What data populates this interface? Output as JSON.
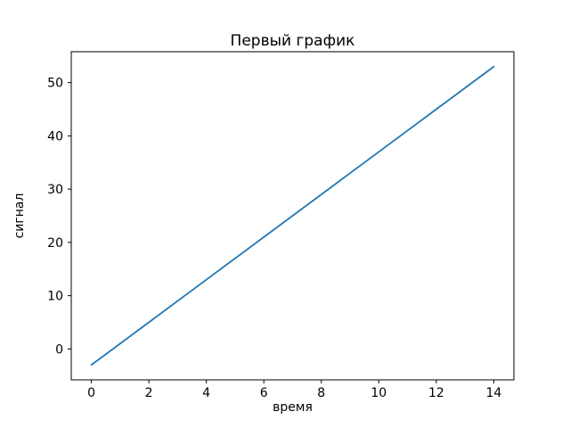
{
  "chart_data": {
    "type": "line",
    "title": "Первый график",
    "xlabel": "время",
    "ylabel": "сигнал",
    "x": [
      0,
      1,
      2,
      3,
      4,
      5,
      6,
      7,
      8,
      9,
      10,
      11,
      12,
      13,
      14
    ],
    "y": [
      -3,
      1,
      5,
      9,
      13,
      17,
      21,
      25,
      29,
      33,
      37,
      41,
      45,
      49,
      53
    ],
    "xlim": [
      -0.7,
      14.7
    ],
    "ylim": [
      -5.8,
      55.8
    ],
    "xticks": [
      0,
      2,
      4,
      6,
      8,
      10,
      12,
      14
    ],
    "yticks": [
      0,
      10,
      20,
      30,
      40,
      50
    ],
    "line_color": "#1f77b4",
    "axis_color": "#000000",
    "background_color": "#ffffff",
    "grid": "off",
    "legend": "none"
  }
}
